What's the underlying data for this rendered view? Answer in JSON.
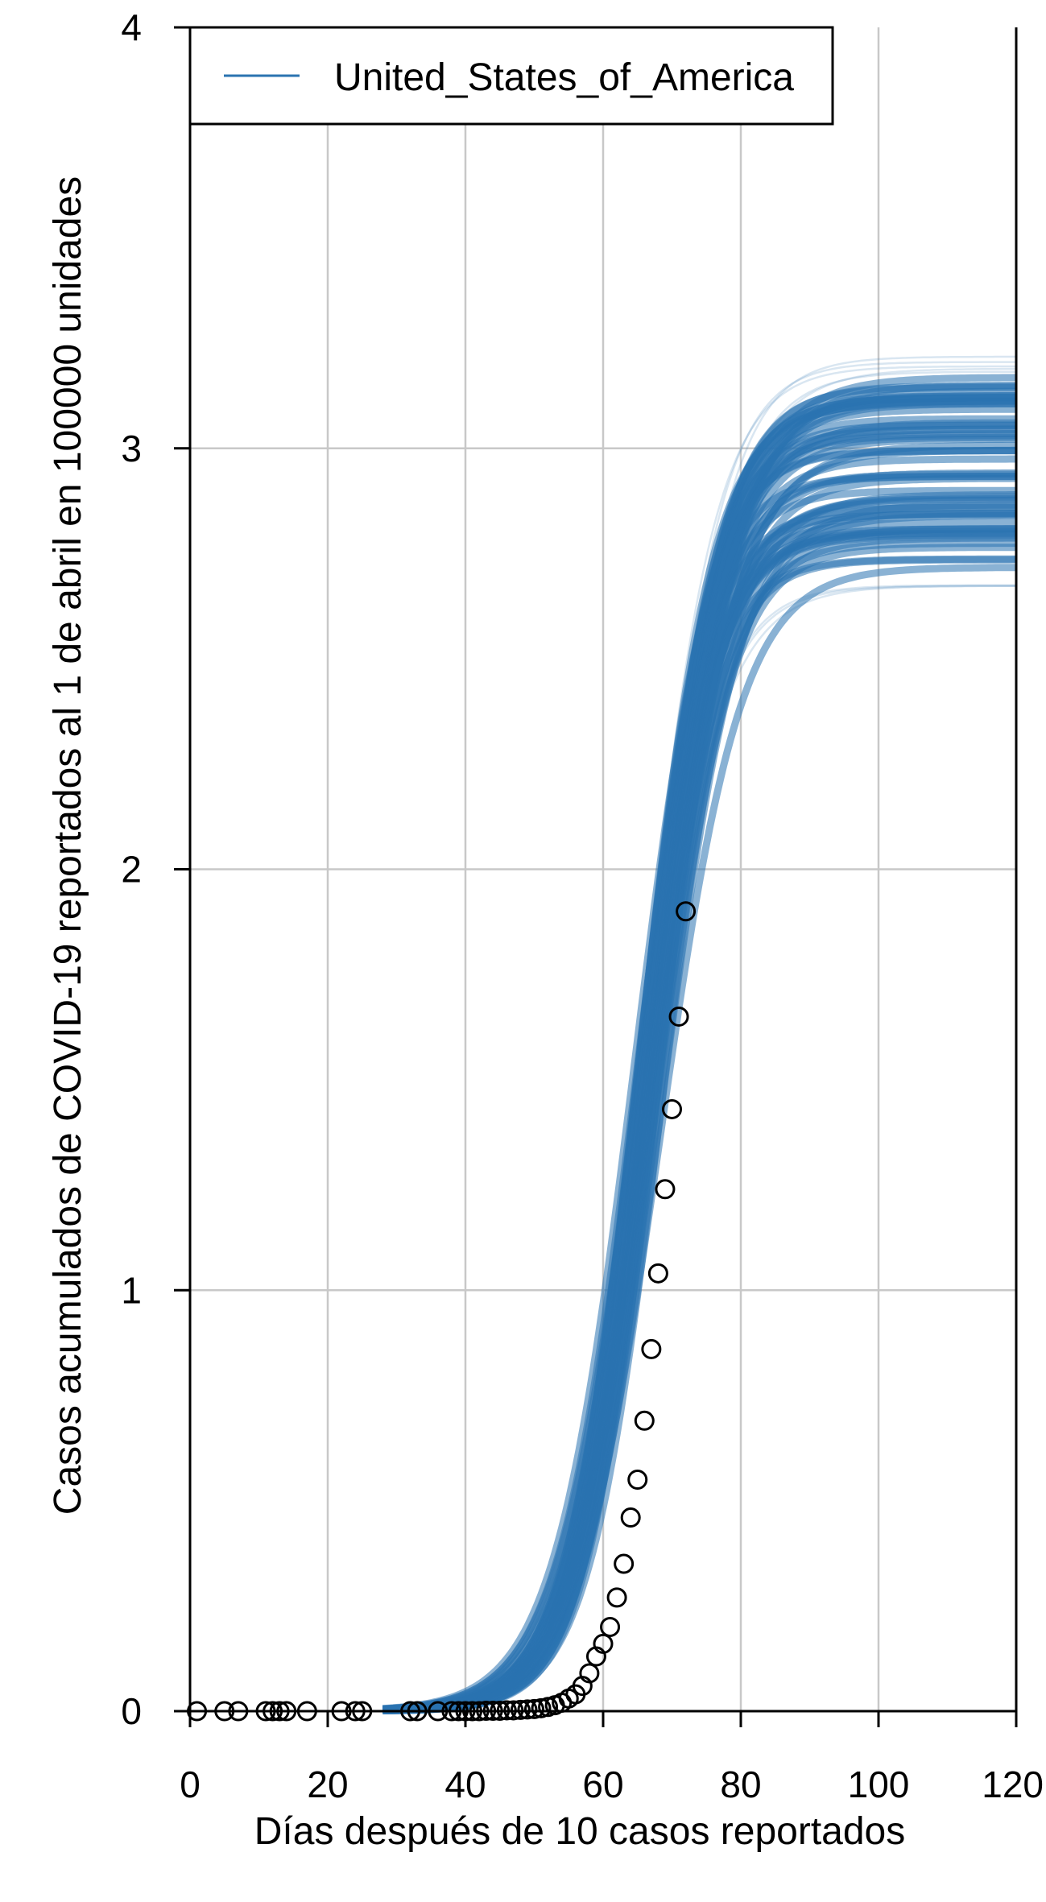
{
  "chart_data": {
    "type": "line",
    "xlabel": "Días después de 10 casos reportados",
    "ylabel": "Casos acumulados de COVID-19 reportados al 1 de abril en 100000 unidades",
    "xlim": [
      0,
      120
    ],
    "ylim": [
      0,
      4
    ],
    "x_ticks": [
      0,
      20,
      40,
      60,
      80,
      100,
      120
    ],
    "y_ticks": [
      0,
      1,
      2,
      3,
      4
    ],
    "grid": true,
    "legend": {
      "position": "top-left",
      "entries": [
        "United_States_of_America"
      ]
    },
    "series": [
      {
        "name": "United_States_of_America",
        "kind": "simulated-curve-ensemble",
        "color": "#2a73b0",
        "asymptote_range": [
          2.67,
          3.22
        ],
        "midpoint_x_range": [
          64.5,
          68.5
        ],
        "growth_rate_range": [
          0.165,
          0.205
        ],
        "ensemble_size": 70
      },
      {
        "name": "observed",
        "kind": "points",
        "marker": "open-circle",
        "color": "#000000",
        "x": [
          1,
          5,
          7,
          11,
          12,
          13,
          14,
          17,
          22,
          24,
          25,
          32,
          33,
          36,
          38,
          39,
          40,
          41,
          42,
          43,
          44,
          45,
          46,
          47,
          48,
          49,
          50,
          51,
          52,
          53,
          54,
          55,
          56,
          57,
          58,
          59,
          60,
          61,
          62,
          63,
          64,
          65,
          66,
          67,
          68,
          69,
          70,
          71,
          72
        ],
        "y": [
          0,
          0,
          0,
          0,
          0,
          0,
          0,
          0,
          0,
          0,
          0,
          0,
          0,
          0,
          0,
          0,
          0,
          0,
          0,
          0.001,
          0.001,
          0.001,
          0.002,
          0.002,
          0.003,
          0.004,
          0.005,
          0.007,
          0.01,
          0.014,
          0.02,
          0.03,
          0.04,
          0.06,
          0.09,
          0.13,
          0.16,
          0.2,
          0.27,
          0.35,
          0.46,
          0.55,
          0.69,
          0.86,
          1.04,
          1.24,
          1.43,
          1.65,
          1.9
        ]
      }
    ]
  }
}
